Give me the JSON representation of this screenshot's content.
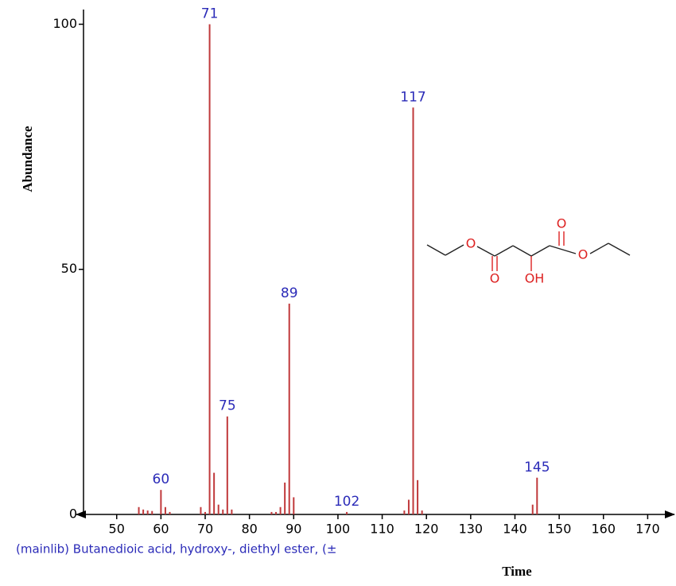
{
  "chart_data": {
    "type": "bar",
    "x": [
      55,
      56,
      57,
      58,
      60,
      61,
      62,
      69,
      70,
      71,
      72,
      73,
      74,
      75,
      76,
      85,
      86,
      87,
      88,
      89,
      90,
      102,
      115,
      116,
      117,
      118,
      119,
      144,
      145
    ],
    "values": [
      1.5,
      1,
      0.8,
      0.7,
      5,
      1.5,
      0.5,
      1.5,
      0.5,
      100,
      8.5,
      2,
      1,
      20,
      1,
      0.5,
      0.5,
      1.5,
      6.5,
      43,
      3.5,
      0.5,
      0.8,
      3,
      83,
      7,
      0.8,
      2,
      7.5
    ],
    "peak_labels": [
      null,
      null,
      null,
      null,
      60,
      null,
      null,
      null,
      null,
      71,
      null,
      null,
      null,
      75,
      null,
      null,
      null,
      null,
      null,
      89,
      null,
      102,
      null,
      null,
      117,
      null,
      null,
      null,
      145
    ],
    "color": "#c0393b",
    "label_color": "#2b2bb8",
    "xlim": [
      42.5,
      175.5
    ],
    "xticks": [
      50,
      60,
      70,
      80,
      90,
      100,
      110,
      120,
      130,
      140,
      150,
      160,
      170
    ],
    "ylim": [
      0,
      103
    ],
    "yticks": [
      0,
      50,
      100
    ],
    "ylabel": "Abundance",
    "xlabel": "Time",
    "caption": "(mainlib) Butanedioic acid, hydroxy-, diethyl ester, (±",
    "molecule_atoms": [
      "O",
      "O",
      "OH",
      "O",
      "O"
    ]
  }
}
